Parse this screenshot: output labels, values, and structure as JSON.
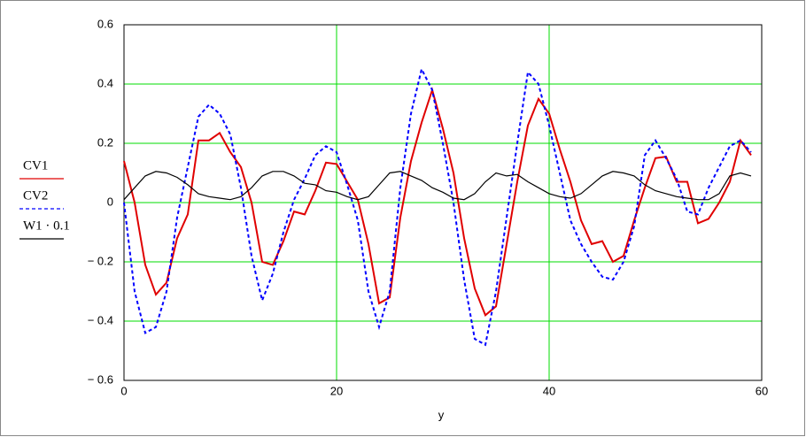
{
  "chart_data": {
    "type": "line",
    "x": [
      0,
      1,
      2,
      3,
      4,
      5,
      6,
      7,
      8,
      9,
      10,
      11,
      12,
      13,
      14,
      15,
      16,
      17,
      18,
      19,
      20,
      21,
      22,
      23,
      24,
      25,
      26,
      27,
      28,
      29,
      30,
      31,
      32,
      33,
      34,
      35,
      36,
      37,
      38,
      39,
      40,
      41,
      42,
      43,
      44,
      45,
      46,
      47,
      48,
      49,
      50,
      51,
      52,
      53,
      54,
      55,
      56,
      57,
      58,
      59
    ],
    "series": [
      {
        "name": "CV1",
        "color": "#e00000",
        "dashed": false,
        "values": [
          0.14,
          0.0,
          -0.21,
          -0.31,
          -0.27,
          -0.12,
          -0.04,
          0.21,
          0.21,
          0.235,
          0.17,
          0.12,
          0.0,
          -0.2,
          -0.21,
          -0.13,
          -0.03,
          -0.04,
          0.04,
          0.135,
          0.13,
          0.07,
          0.01,
          -0.14,
          -0.34,
          -0.32,
          -0.05,
          0.14,
          0.27,
          0.38,
          0.25,
          0.1,
          -0.12,
          -0.29,
          -0.38,
          -0.35,
          -0.14,
          0.07,
          0.26,
          0.35,
          0.3,
          0.18,
          0.07,
          -0.06,
          -0.14,
          -0.13,
          -0.2,
          -0.18,
          -0.06,
          0.05,
          0.15,
          0.155,
          0.07,
          0.07,
          -0.07,
          -0.055,
          0.0,
          0.07,
          0.21,
          0.16
        ]
      },
      {
        "name": "CV2",
        "color": "#0000ff",
        "dashed": true,
        "values": [
          0.0,
          -0.3,
          -0.44,
          -0.42,
          -0.3,
          -0.05,
          0.12,
          0.29,
          0.33,
          0.3,
          0.23,
          0.05,
          -0.18,
          -0.33,
          -0.24,
          -0.1,
          0.01,
          0.08,
          0.16,
          0.19,
          0.17,
          0.06,
          -0.06,
          -0.3,
          -0.42,
          -0.3,
          0.05,
          0.3,
          0.45,
          0.38,
          0.2,
          0.0,
          -0.26,
          -0.46,
          -0.48,
          -0.3,
          -0.05,
          0.2,
          0.44,
          0.4,
          0.26,
          0.1,
          -0.06,
          -0.14,
          -0.2,
          -0.25,
          -0.26,
          -0.2,
          -0.08,
          0.16,
          0.21,
          0.15,
          0.08,
          -0.03,
          -0.04,
          0.05,
          0.12,
          0.19,
          0.21,
          0.17
        ]
      },
      {
        "name": "W1 · 0.1",
        "color": "#000000",
        "dashed": false,
        "values": [
          0.01,
          0.05,
          0.09,
          0.105,
          0.1,
          0.085,
          0.06,
          0.03,
          0.02,
          0.015,
          0.01,
          0.02,
          0.05,
          0.09,
          0.105,
          0.105,
          0.09,
          0.065,
          0.06,
          0.04,
          0.035,
          0.02,
          0.01,
          0.02,
          0.06,
          0.1,
          0.105,
          0.09,
          0.075,
          0.05,
          0.035,
          0.015,
          0.01,
          0.03,
          0.07,
          0.1,
          0.09,
          0.095,
          0.07,
          0.05,
          0.03,
          0.02,
          0.015,
          0.03,
          0.06,
          0.09,
          0.105,
          0.1,
          0.09,
          0.06,
          0.04,
          0.03,
          0.02,
          0.015,
          0.01,
          0.01,
          0.03,
          0.09,
          0.1,
          0.09
        ]
      }
    ],
    "x_label": "y",
    "xlim": [
      0,
      60
    ],
    "xticks": [
      0,
      20,
      40,
      60
    ],
    "ylim": [
      -0.6,
      0.6
    ],
    "yticks": [
      {
        "value": -0.6,
        "label": "− 0.6"
      },
      {
        "value": -0.4,
        "label": "− 0.4"
      },
      {
        "value": -0.2,
        "label": "− 0.2"
      },
      0,
      0.2,
      0.4,
      0.6
    ],
    "grid": true
  }
}
